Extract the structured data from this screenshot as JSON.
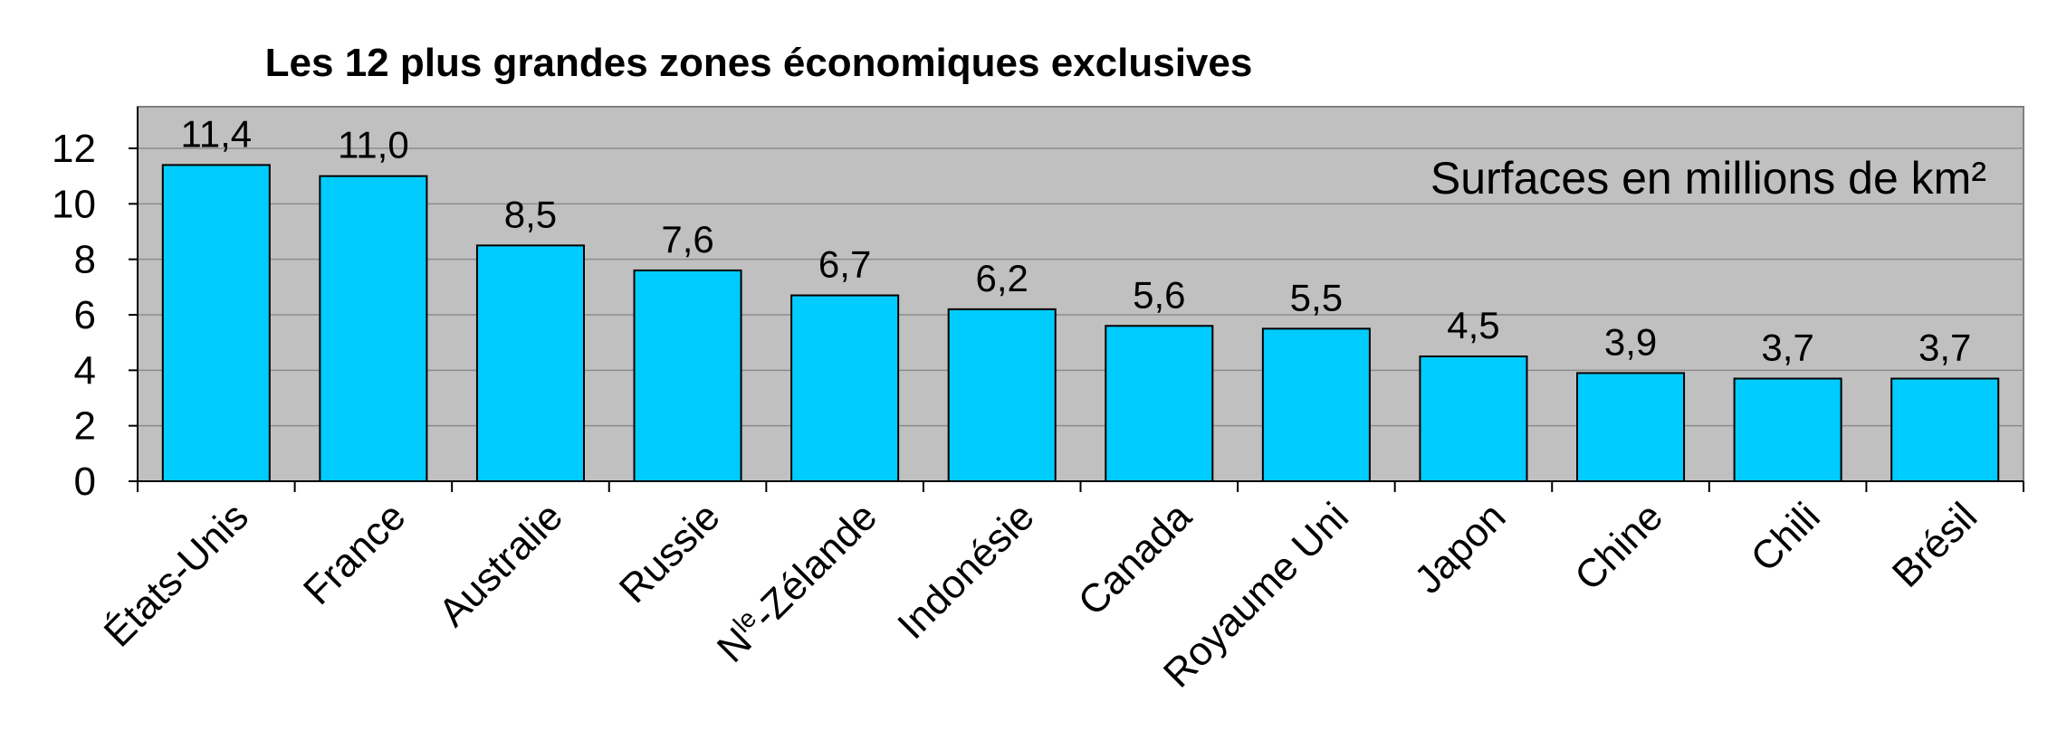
{
  "chart_data": {
    "type": "bar",
    "title": "Les 12 plus grandes zones économiques exclusives",
    "annotation": "Surfaces en millions de km²",
    "categories": [
      "États-Unis",
      "France",
      "Australie",
      "Russie",
      "N^le-Zélande",
      "Indonésie",
      "Canada",
      "Royaume Uni",
      "Japon",
      "Chine",
      "Chili",
      "Brésil"
    ],
    "values": [
      11.4,
      11.0,
      8.5,
      7.6,
      6.7,
      6.2,
      5.6,
      5.5,
      4.5,
      3.9,
      3.7,
      3.7
    ],
    "data_labels": [
      "11,4",
      "11,0",
      "8,5",
      "7,6",
      "6,7",
      "6,2",
      "5,6",
      "5,5",
      "4,5",
      "3,9",
      "3,7",
      "3,7"
    ],
    "yticks": [
      0,
      2,
      4,
      6,
      8,
      10,
      12
    ],
    "ylim": [
      0,
      13.5
    ],
    "xlabel": "",
    "ylabel": "",
    "grid": true,
    "colors": {
      "bar": "#00CCFF",
      "plot_bg": "#C0C0C0",
      "gridline": "#8C8C8C",
      "bar_border": "#000000"
    }
  }
}
